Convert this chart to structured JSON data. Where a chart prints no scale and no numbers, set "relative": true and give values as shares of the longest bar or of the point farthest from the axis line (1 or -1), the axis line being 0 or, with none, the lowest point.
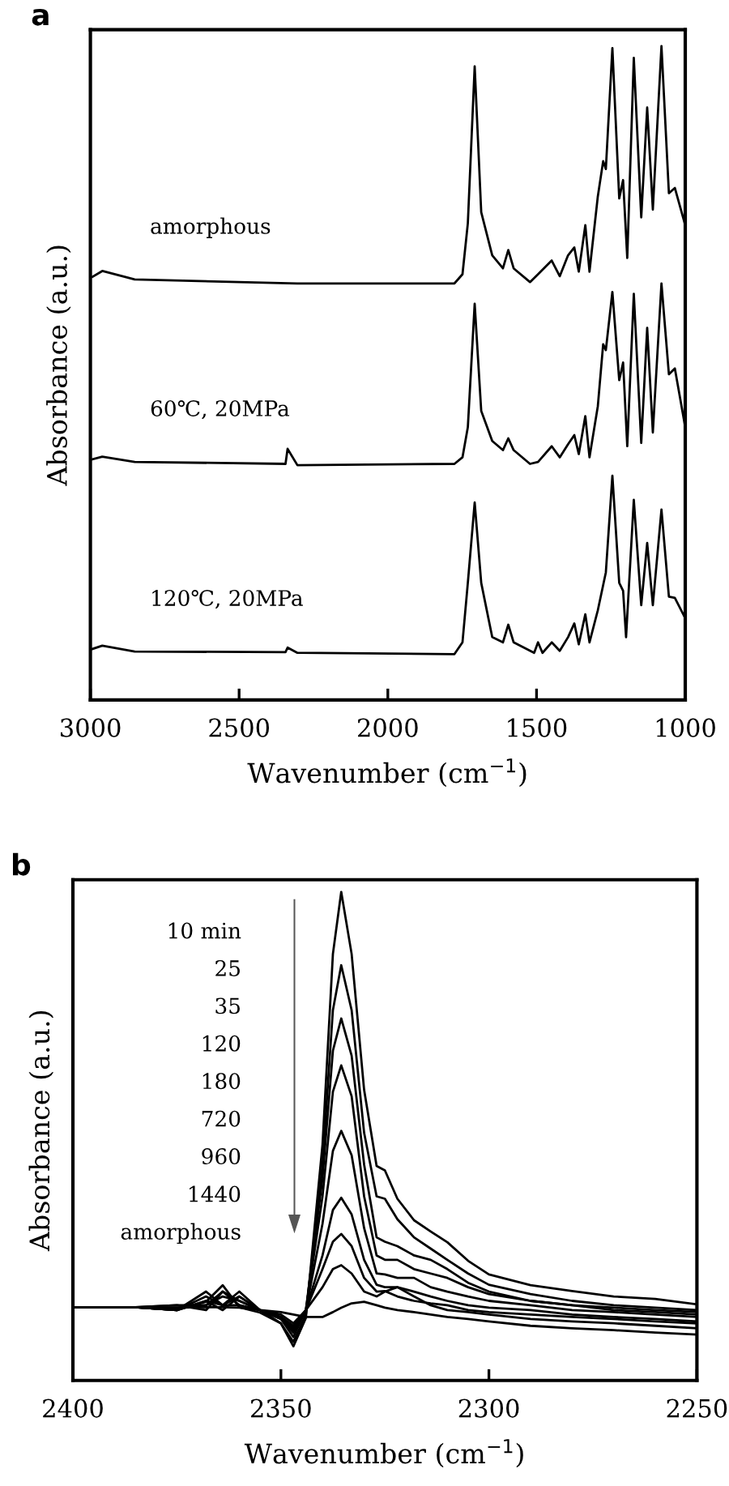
{
  "chart_data": [
    {
      "type": "line",
      "title": "a",
      "xlabel": "Wavenumber (cm$^{−1}$)",
      "ylabel": "Absorbance (a.u.)",
      "relative": true,
      "xlim": [
        3000,
        1000
      ],
      "xticks": [
        3000,
        2500,
        2000,
        1500,
        1000
      ],
      "legend": false,
      "grid": false,
      "marker": "none",
      "line_style": "solid",
      "series": [
        {
          "name": "amorphous",
          "color": "#000000",
          "x": [
            2993,
            2960,
            2851,
            2304,
            1776,
            1749,
            1731,
            1708,
            1686,
            1649,
            1613,
            1595,
            1577,
            1522,
            1495,
            1449,
            1422,
            1394,
            1373,
            1358,
            1336,
            1322,
            1294,
            1276,
            1267,
            1245,
            1222,
            1209,
            1195,
            1173,
            1148,
            1128,
            1109,
            1080,
            1055,
            1035,
            1000
          ],
          "values": [
            0.647,
            0.656,
            0.643,
            0.637,
            0.637,
            0.651,
            0.729,
            0.969,
            0.746,
            0.68,
            0.66,
            0.688,
            0.66,
            0.639,
            0.651,
            0.672,
            0.648,
            0.68,
            0.692,
            0.655,
            0.726,
            0.655,
            0.77,
            0.824,
            0.812,
            0.997,
            0.767,
            0.795,
            0.676,
            0.982,
            0.738,
            0.906,
            0.75,
            1.0,
            0.775,
            0.783,
            0.726
          ]
        },
        {
          "name": "60℃, 20MPa",
          "color": "#000000",
          "x": [
            2993,
            2960,
            2851,
            2344,
            2337,
            2304,
            1776,
            1749,
            1731,
            1708,
            1686,
            1649,
            1613,
            1595,
            1577,
            1522,
            1495,
            1449,
            1422,
            1394,
            1373,
            1358,
            1336,
            1322,
            1294,
            1276,
            1267,
            1245,
            1222,
            1209,
            1195,
            1173,
            1148,
            1128,
            1109,
            1080,
            1055,
            1035,
            1000
          ],
          "values": [
            0.368,
            0.372,
            0.364,
            0.361,
            0.384,
            0.359,
            0.361,
            0.371,
            0.417,
            0.606,
            0.442,
            0.396,
            0.382,
            0.4,
            0.382,
            0.361,
            0.364,
            0.388,
            0.371,
            0.391,
            0.405,
            0.376,
            0.434,
            0.371,
            0.449,
            0.544,
            0.535,
            0.624,
            0.489,
            0.516,
            0.388,
            0.621,
            0.393,
            0.569,
            0.409,
            0.637,
            0.498,
            0.507,
            0.417
          ]
        },
        {
          "name": "120℃, 20MPa",
          "color": "#000000",
          "x": [
            2993,
            2960,
            2851,
            2344,
            2337,
            2304,
            1776,
            1749,
            1731,
            1708,
            1686,
            1649,
            1613,
            1595,
            1577,
            1508,
            1495,
            1480,
            1449,
            1422,
            1394,
            1373,
            1358,
            1336,
            1322,
            1294,
            1267,
            1245,
            1222,
            1209,
            1199,
            1173,
            1148,
            1128,
            1109,
            1080,
            1055,
            1035,
            1000
          ],
          "values": [
            0.078,
            0.083,
            0.074,
            0.073,
            0.08,
            0.072,
            0.07,
            0.088,
            0.179,
            0.302,
            0.179,
            0.096,
            0.088,
            0.115,
            0.088,
            0.072,
            0.088,
            0.072,
            0.088,
            0.075,
            0.096,
            0.117,
            0.085,
            0.131,
            0.088,
            0.137,
            0.195,
            0.343,
            0.179,
            0.167,
            0.096,
            0.306,
            0.145,
            0.24,
            0.145,
            0.291,
            0.158,
            0.156,
            0.125
          ]
        }
      ]
    },
    {
      "type": "line",
      "title": "b",
      "xlabel": "Wavenumber (cm$^{−1}$)",
      "ylabel": "Absorbance (a.u.)",
      "relative": true,
      "xlim": [
        2400,
        2250
      ],
      "xticks": [
        2400,
        2350,
        2300,
        2250
      ],
      "legend": false,
      "grid": false,
      "marker": "none",
      "line_style": "solid",
      "annotations": [
        "10 min",
        "25",
        "35",
        "120",
        "180",
        "720",
        "960",
        "1440",
        "amorphous"
      ],
      "x": [
        2400,
        2385,
        2375,
        2368,
        2364,
        2360,
        2355,
        2350,
        2347,
        2344,
        2340,
        2337.5,
        2335.5,
        2333,
        2330,
        2327,
        2325,
        2322,
        2318,
        2314,
        2310,
        2305,
        2300,
        2290,
        2280,
        2270,
        2260,
        2250
      ],
      "series": [
        {
          "color": "#000000",
          "values": [
            0.15,
            0.15,
            0.144,
            0.161,
            0.195,
            0.15,
            0.139,
            0.117,
            0.07,
            0.128,
            0.483,
            0.873,
            1.0,
            0.873,
            0.595,
            0.439,
            0.43,
            0.372,
            0.328,
            0.305,
            0.283,
            0.245,
            0.217,
            0.195,
            0.183,
            0.172,
            0.167,
            0.156
          ]
        },
        {
          "color": "#000000",
          "values": [
            0.15,
            0.15,
            0.144,
            0.172,
            0.154,
            0.182,
            0.144,
            0.117,
            0.079,
            0.135,
            0.442,
            0.758,
            0.85,
            0.758,
            0.507,
            0.377,
            0.372,
            0.33,
            0.293,
            0.27,
            0.247,
            0.219,
            0.196,
            0.177,
            0.163,
            0.154,
            0.149,
            0.144
          ]
        },
        {
          "color": "#000000",
          "values": [
            0.15,
            0.15,
            0.154,
            0.144,
            0.182,
            0.163,
            0.144,
            0.126,
            0.089,
            0.144,
            0.414,
            0.675,
            0.741,
            0.665,
            0.442,
            0.293,
            0.284,
            0.275,
            0.256,
            0.247,
            0.228,
            0.2,
            0.182,
            0.163,
            0.154,
            0.149,
            0.144,
            0.14
          ]
        },
        {
          "color": "#000000",
          "values": [
            0.15,
            0.15,
            0.144,
            0.182,
            0.154,
            0.154,
            0.144,
            0.126,
            0.098,
            0.144,
            0.377,
            0.591,
            0.645,
            0.582,
            0.377,
            0.256,
            0.247,
            0.247,
            0.228,
            0.219,
            0.21,
            0.191,
            0.177,
            0.163,
            0.154,
            0.144,
            0.14,
            0.135
          ]
        },
        {
          "color": "#000000",
          "values": [
            0.15,
            0.15,
            0.154,
            0.154,
            0.172,
            0.163,
            0.144,
            0.126,
            0.103,
            0.144,
            0.321,
            0.47,
            0.511,
            0.461,
            0.312,
            0.219,
            0.217,
            0.21,
            0.21,
            0.191,
            0.182,
            0.172,
            0.163,
            0.154,
            0.144,
            0.14,
            0.135,
            0.13
          ]
        },
        {
          "color": "#000000",
          "values": [
            0.15,
            0.15,
            0.144,
            0.163,
            0.144,
            0.172,
            0.144,
            0.13,
            0.107,
            0.144,
            0.256,
            0.349,
            0.374,
            0.34,
            0.247,
            0.196,
            0.191,
            0.191,
            0.182,
            0.172,
            0.163,
            0.154,
            0.149,
            0.144,
            0.135,
            0.13,
            0.126,
            0.121
          ]
        },
        {
          "color": "#000000",
          "values": [
            0.15,
            0.15,
            0.149,
            0.154,
            0.182,
            0.154,
            0.144,
            0.13,
            0.112,
            0.144,
            0.228,
            0.284,
            0.3,
            0.275,
            0.21,
            0.182,
            0.183,
            0.172,
            0.163,
            0.158,
            0.154,
            0.144,
            0.14,
            0.135,
            0.13,
            0.126,
            0.121,
            0.117
          ]
        },
        {
          "color": "#000000",
          "values": [
            0.15,
            0.15,
            0.144,
            0.163,
            0.154,
            0.172,
            0.144,
            0.135,
            0.117,
            0.144,
            0.191,
            0.228,
            0.236,
            0.219,
            0.182,
            0.172,
            0.182,
            0.191,
            0.172,
            0.154,
            0.144,
            0.14,
            0.135,
            0.126,
            0.121,
            0.117,
            0.112,
            0.107
          ]
        },
        {
          "color": "#000000",
          "values": [
            0.15,
            0.15,
            0.149,
            0.15,
            0.15,
            0.149,
            0.144,
            0.14,
            0.135,
            0.13,
            0.13,
            0.14,
            0.149,
            0.158,
            0.161,
            0.154,
            0.149,
            0.144,
            0.14,
            0.135,
            0.13,
            0.126,
            0.121,
            0.112,
            0.107,
            0.103,
            0.098,
            0.094
          ]
        }
      ]
    }
  ]
}
